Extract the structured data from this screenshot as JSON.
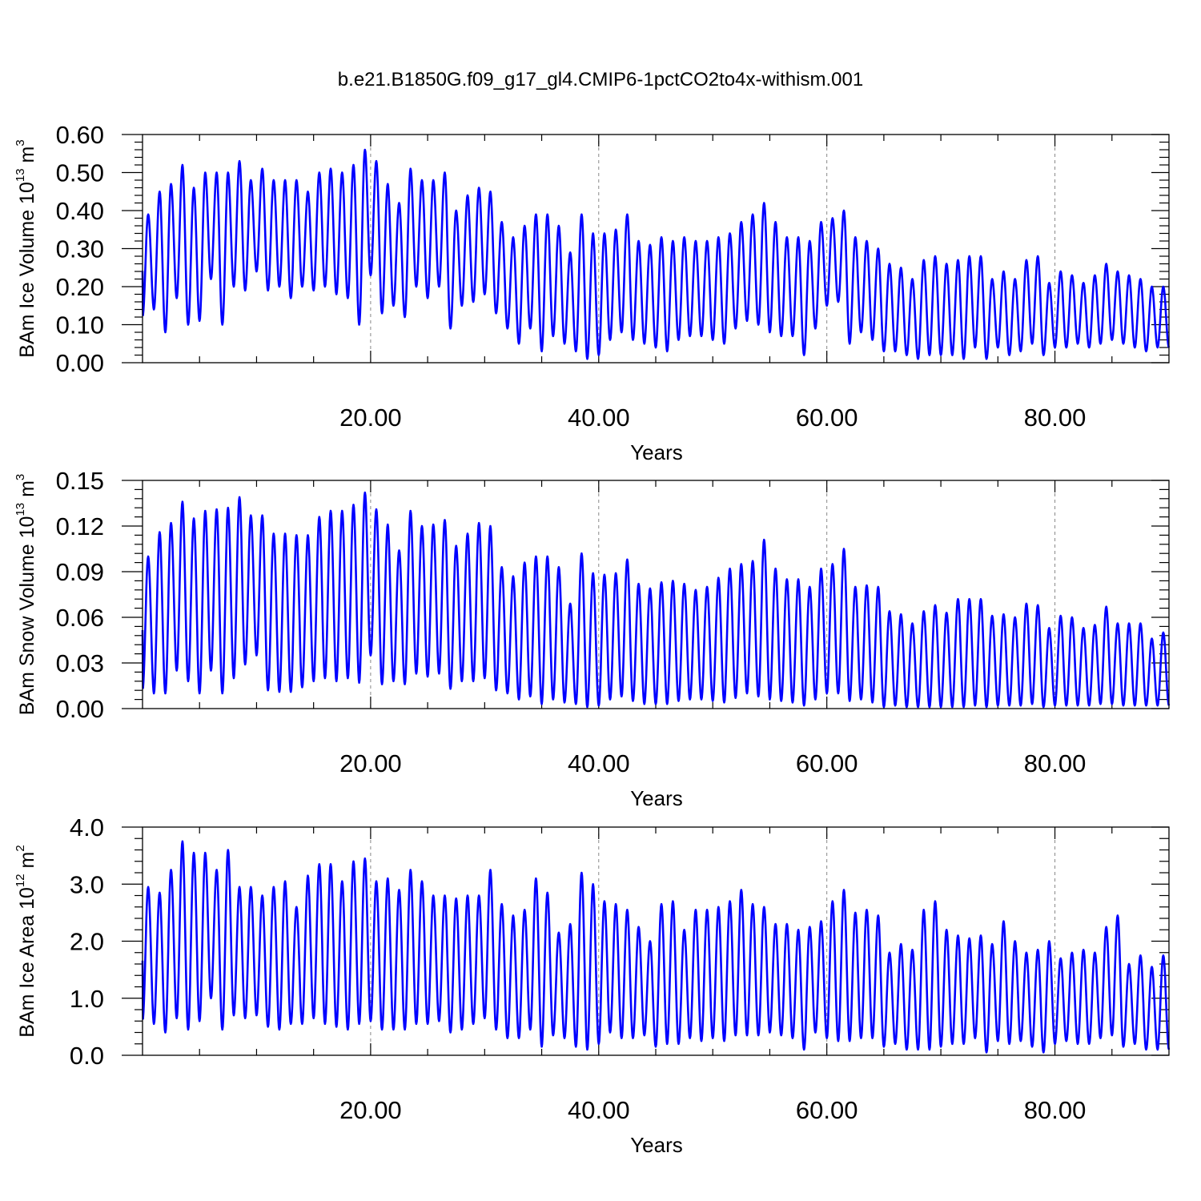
{
  "title": "b.e21.B1850G.f09_g17_gl4.CMIP6-1pctCO2to4x-withism.001",
  "colors": {
    "series": "#0000ff",
    "axis": "#000000",
    "grid": "#888888"
  },
  "chart_data": [
    {
      "type": "line",
      "ylabel": "BAm Ice Volume 10",
      "ylabel_exp": "13",
      "ylabel_unit": " m",
      "ylabel_unit_exp": "3",
      "xlabel": "Years",
      "xlim": [
        0,
        90
      ],
      "ylim": [
        0,
        0.6
      ],
      "yticks": [
        0,
        0.1,
        0.2,
        0.3,
        0.4,
        0.5,
        0.6
      ],
      "ytick_labels": [
        "0.00",
        "0.10",
        "0.20",
        "0.30",
        "0.40",
        "0.50",
        "0.60"
      ],
      "xticks": [
        20,
        40,
        60,
        80
      ],
      "xtick_labels": [
        "20.00",
        "40.00",
        "60.00",
        "80.00"
      ],
      "series_color": "#0000ff",
      "annual_max": [
        0.39,
        0.45,
        0.47,
        0.52,
        0.46,
        0.5,
        0.5,
        0.5,
        0.53,
        0.48,
        0.51,
        0.48,
        0.48,
        0.48,
        0.45,
        0.5,
        0.51,
        0.5,
        0.52,
        0.56,
        0.53,
        0.47,
        0.42,
        0.51,
        0.48,
        0.48,
        0.5,
        0.4,
        0.44,
        0.46,
        0.45,
        0.37,
        0.33,
        0.36,
        0.39,
        0.39,
        0.36,
        0.29,
        0.39,
        0.34,
        0.34,
        0.35,
        0.39,
        0.32,
        0.31,
        0.33,
        0.32,
        0.33,
        0.32,
        0.32,
        0.33,
        0.34,
        0.37,
        0.39,
        0.42,
        0.37,
        0.33,
        0.33,
        0.32,
        0.37,
        0.38,
        0.4,
        0.33,
        0.32,
        0.3,
        0.26,
        0.25,
        0.22,
        0.27,
        0.28,
        0.26,
        0.27,
        0.28,
        0.28,
        0.22,
        0.24,
        0.22,
        0.27,
        0.28,
        0.21,
        0.24,
        0.23,
        0.21,
        0.23,
        0.26,
        0.24,
        0.23,
        0.22,
        0.2,
        0.2
      ],
      "annual_min": [
        0.12,
        0.14,
        0.08,
        0.17,
        0.1,
        0.11,
        0.22,
        0.1,
        0.2,
        0.19,
        0.24,
        0.19,
        0.2,
        0.17,
        0.2,
        0.19,
        0.2,
        0.18,
        0.17,
        0.1,
        0.23,
        0.13,
        0.15,
        0.12,
        0.2,
        0.17,
        0.2,
        0.09,
        0.15,
        0.16,
        0.18,
        0.13,
        0.09,
        0.05,
        0.09,
        0.03,
        0.07,
        0.05,
        0.03,
        0.01,
        0.02,
        0.06,
        0.08,
        0.06,
        0.05,
        0.04,
        0.03,
        0.06,
        0.07,
        0.07,
        0.06,
        0.05,
        0.09,
        0.11,
        0.1,
        0.08,
        0.07,
        0.07,
        0.02,
        0.09,
        0.15,
        0.16,
        0.05,
        0.08,
        0.06,
        0.03,
        0.03,
        0.02,
        0.01,
        0.02,
        0.02,
        0.02,
        0.01,
        0.04,
        0.01,
        0.04,
        0.02,
        0.03,
        0.05,
        0.02,
        0.04,
        0.04,
        0.05,
        0.04,
        0.05,
        0.06,
        0.05,
        0.04,
        0.03,
        0.04
      ]
    },
    {
      "type": "line",
      "ylabel": "BAm Snow Volume 10",
      "ylabel_exp": "13",
      "ylabel_unit": " m",
      "ylabel_unit_exp": "3",
      "xlabel": "Years",
      "xlim": [
        0,
        90
      ],
      "ylim": [
        0,
        0.15
      ],
      "yticks": [
        0,
        0.03,
        0.06,
        0.09,
        0.12,
        0.15
      ],
      "ytick_labels": [
        "0.00",
        "0.03",
        "0.06",
        "0.09",
        "0.12",
        "0.15"
      ],
      "xticks": [
        20,
        40,
        60,
        80
      ],
      "xtick_labels": [
        "20.00",
        "40.00",
        "60.00",
        "80.00"
      ],
      "series_color": "#0000ff",
      "annual_max": [
        0.1,
        0.116,
        0.122,
        0.136,
        0.125,
        0.13,
        0.131,
        0.132,
        0.139,
        0.127,
        0.127,
        0.115,
        0.115,
        0.114,
        0.114,
        0.126,
        0.13,
        0.13,
        0.134,
        0.142,
        0.131,
        0.121,
        0.104,
        0.13,
        0.12,
        0.121,
        0.124,
        0.107,
        0.115,
        0.122,
        0.12,
        0.093,
        0.087,
        0.096,
        0.1,
        0.1,
        0.093,
        0.069,
        0.102,
        0.089,
        0.088,
        0.089,
        0.098,
        0.082,
        0.079,
        0.083,
        0.084,
        0.082,
        0.078,
        0.08,
        0.086,
        0.092,
        0.095,
        0.097,
        0.111,
        0.092,
        0.085,
        0.085,
        0.08,
        0.092,
        0.095,
        0.105,
        0.08,
        0.081,
        0.08,
        0.064,
        0.062,
        0.056,
        0.064,
        0.068,
        0.063,
        0.072,
        0.072,
        0.072,
        0.061,
        0.062,
        0.06,
        0.069,
        0.068,
        0.053,
        0.061,
        0.06,
        0.053,
        0.055,
        0.067,
        0.056,
        0.056,
        0.056,
        0.046,
        0.05
      ],
      "annual_min": [
        0.012,
        0.01,
        0.01,
        0.025,
        0.018,
        0.01,
        0.025,
        0.01,
        0.02,
        0.029,
        0.035,
        0.012,
        0.011,
        0.011,
        0.014,
        0.018,
        0.02,
        0.018,
        0.02,
        0.017,
        0.035,
        0.016,
        0.018,
        0.016,
        0.023,
        0.021,
        0.023,
        0.013,
        0.018,
        0.018,
        0.02,
        0.012,
        0.01,
        0.006,
        0.008,
        0.003,
        0.006,
        0.004,
        0.003,
        0.001,
        0.002,
        0.006,
        0.008,
        0.005,
        0.003,
        0.003,
        0.003,
        0.005,
        0.006,
        0.006,
        0.005,
        0.004,
        0.007,
        0.01,
        0.008,
        0.006,
        0.005,
        0.004,
        0.002,
        0.006,
        0.01,
        0.01,
        0.005,
        0.006,
        0.004,
        0.001,
        0.002,
        0.001,
        0.001,
        0.001,
        0.001,
        0.001,
        0.001,
        0.002,
        0.001,
        0.002,
        0.002,
        0.002,
        0.003,
        0.001,
        0.002,
        0.002,
        0.002,
        0.002,
        0.003,
        0.003,
        0.002,
        0.002,
        0.002,
        0.002
      ]
    },
    {
      "type": "line",
      "ylabel": "BAm Ice Area 10",
      "ylabel_exp": "12",
      "ylabel_unit": " m",
      "ylabel_unit_exp": "2",
      "xlabel": "Years",
      "xlim": [
        0,
        90
      ],
      "ylim": [
        0,
        4.0
      ],
      "yticks": [
        0,
        1,
        2,
        3,
        4
      ],
      "ytick_labels": [
        "0.0",
        "1.0",
        "2.0",
        "3.0",
        "4.0"
      ],
      "xticks": [
        20,
        40,
        60,
        80
      ],
      "xtick_labels": [
        "20.00",
        "40.00",
        "60.00",
        "80.00"
      ],
      "series_color": "#0000ff",
      "annual_max": [
        2.95,
        2.85,
        3.25,
        3.75,
        3.55,
        3.55,
        3.25,
        3.6,
        2.95,
        2.95,
        2.8,
        2.95,
        3.05,
        2.6,
        3.15,
        3.35,
        3.35,
        3.05,
        3.4,
        3.45,
        3.05,
        3.1,
        2.9,
        3.25,
        3.05,
        2.8,
        2.8,
        2.75,
        2.8,
        2.8,
        3.25,
        2.65,
        2.45,
        2.55,
        3.1,
        2.85,
        2.15,
        2.3,
        3.2,
        3.0,
        2.7,
        2.65,
        2.55,
        2.25,
        2.0,
        2.65,
        2.7,
        2.2,
        2.55,
        2.55,
        2.6,
        2.7,
        2.9,
        2.65,
        2.6,
        2.3,
        2.3,
        2.2,
        2.25,
        2.35,
        2.7,
        2.9,
        2.5,
        2.55,
        2.45,
        1.8,
        1.95,
        1.85,
        2.55,
        2.7,
        2.2,
        2.1,
        2.05,
        2.1,
        1.95,
        2.35,
        2.0,
        1.8,
        1.85,
        2.0,
        1.7,
        1.8,
        1.85,
        1.8,
        2.25,
        2.45,
        1.6,
        1.75,
        1.55,
        1.75
      ],
      "annual_min": [
        0.6,
        0.55,
        0.4,
        0.65,
        0.45,
        0.6,
        1.0,
        0.45,
        0.7,
        0.65,
        0.7,
        0.5,
        0.45,
        0.55,
        0.55,
        0.65,
        0.55,
        0.5,
        0.45,
        0.55,
        0.6,
        0.45,
        0.45,
        0.45,
        0.55,
        0.55,
        0.6,
        0.4,
        0.45,
        0.55,
        0.65,
        0.45,
        0.3,
        0.3,
        0.45,
        0.15,
        0.35,
        0.3,
        0.15,
        0.1,
        0.2,
        0.4,
        0.3,
        0.3,
        0.35,
        0.15,
        0.2,
        0.2,
        0.3,
        0.25,
        0.3,
        0.25,
        0.35,
        0.35,
        0.35,
        0.4,
        0.35,
        0.3,
        0.1,
        0.4,
        0.3,
        0.25,
        0.25,
        0.3,
        0.3,
        0.15,
        0.2,
        0.1,
        0.1,
        0.1,
        0.15,
        0.2,
        0.2,
        0.3,
        0.05,
        0.25,
        0.2,
        0.25,
        0.15,
        0.05,
        0.2,
        0.25,
        0.2,
        0.2,
        0.3,
        0.35,
        0.15,
        0.2,
        0.1,
        0.1
      ]
    }
  ]
}
